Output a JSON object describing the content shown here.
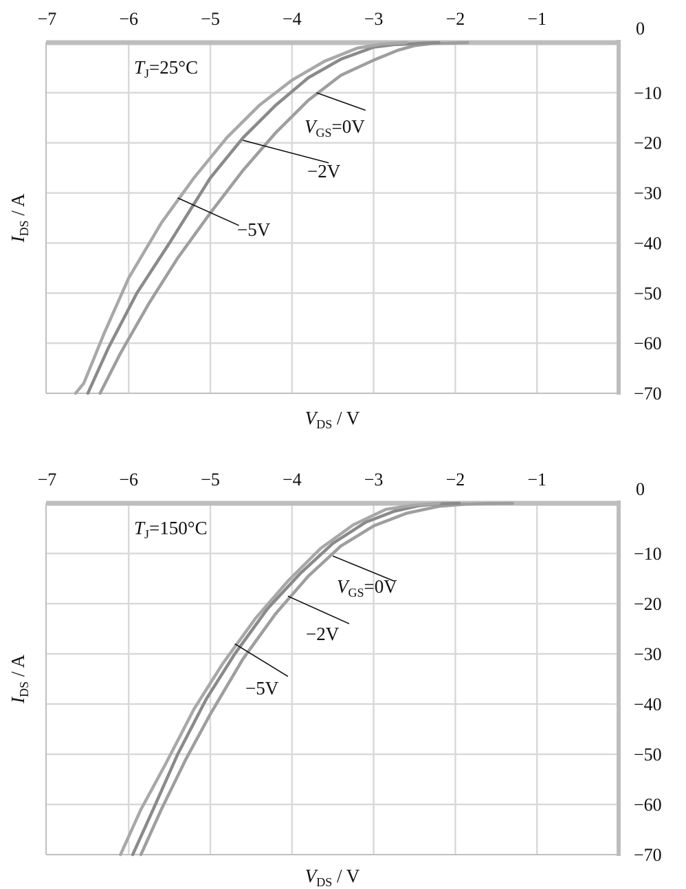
{
  "chart_data": [
    {
      "type": "line",
      "annotation": {
        "italic": "T",
        "sub": "J",
        "rest": "=25°C"
      },
      "xlabel": {
        "italic": "V",
        "sub": "DS",
        "rest": " / V"
      },
      "ylabel": {
        "italic": "I",
        "sub": "DS",
        "rest": " / A"
      },
      "xlim": [
        -7,
        0
      ],
      "ylim": [
        -70,
        0
      ],
      "x_ticks": [
        "−7",
        "−6",
        "−5",
        "−4",
        "−3",
        "−2",
        "−1"
      ],
      "y_ticks": [
        "0",
        "−10",
        "−20",
        "−30",
        "−40",
        "−50",
        "−60",
        "−70"
      ],
      "grid": true,
      "colors": {
        "gs0": "#9e9e9e",
        "gs2": "#8a8a8a",
        "gs5": "#a8a8a8"
      },
      "series": [
        {
          "label": {
            "italic": "V",
            "sub": "GS",
            "rest": "=0V"
          },
          "color_key": "gs0",
          "x": [
            -6.35,
            -6.1,
            -5.75,
            -5.4,
            -5.0,
            -4.6,
            -4.2,
            -3.8,
            -3.4,
            -3.0,
            -2.7,
            -2.5,
            -2.3,
            -2.05,
            -1.85
          ],
          "y": [
            -70,
            -62,
            -52,
            -43,
            -34,
            -25.5,
            -18,
            -11.5,
            -6.5,
            -3.5,
            -1.5,
            -0.6,
            -0.2,
            -0.1,
            0
          ]
        },
        {
          "label": {
            "rest": "−2V"
          },
          "color_key": "gs2",
          "x": [
            -6.5,
            -6.25,
            -5.9,
            -5.5,
            -5.0,
            -4.6,
            -4.2,
            -3.8,
            -3.4,
            -3.0,
            -2.75,
            -2.6,
            -2.4,
            -2.2
          ],
          "y": [
            -70,
            -61,
            -50,
            -40,
            -27,
            -19,
            -12.5,
            -7,
            -3.3,
            -0.9,
            -0.4,
            -0.3,
            -0.1,
            0
          ]
        },
        {
          "label": {
            "rest": "−5V"
          },
          "color_key": "gs5",
          "x": [
            -6.65,
            -6.55,
            -6.3,
            -6.0,
            -5.6,
            -5.2,
            -4.8,
            -4.4,
            -4.0,
            -3.6,
            -3.2,
            -2.9,
            -2.6
          ],
          "y": [
            -70,
            -68,
            -58,
            -47,
            -36,
            -27,
            -19,
            -12.5,
            -7.5,
            -3.7,
            -1.1,
            -0.3,
            0
          ]
        }
      ]
    },
    {
      "type": "line",
      "annotation": {
        "italic": "T",
        "sub": "J",
        "rest": "=150°C"
      },
      "xlabel": {
        "italic": "V",
        "sub": "DS",
        "rest": " / V"
      },
      "ylabel": {
        "italic": "I",
        "sub": "DS",
        "rest": " / A"
      },
      "xlim": [
        -7,
        0
      ],
      "ylim": [
        -70,
        0
      ],
      "x_ticks": [
        "−7",
        "−6",
        "−5",
        "−4",
        "−3",
        "−2",
        "−1"
      ],
      "y_ticks": [
        "0",
        "−10",
        "−20",
        "−30",
        "−40",
        "−50",
        "−60",
        "−70"
      ],
      "grid": true,
      "colors": {
        "gs0": "#9e9e9e",
        "gs2": "#8a8a8a",
        "gs5": "#a8a8a8"
      },
      "series": [
        {
          "label": {
            "italic": "V",
            "sub": "GS",
            "rest": "=0V"
          },
          "color_key": "gs0",
          "x": [
            -5.85,
            -5.6,
            -5.3,
            -5.0,
            -4.6,
            -4.2,
            -3.8,
            -3.4,
            -3.0,
            -2.6,
            -2.2,
            -1.9,
            -1.6,
            -1.3
          ],
          "y": [
            -70,
            -61,
            -51,
            -42,
            -31,
            -22,
            -14.5,
            -8.5,
            -4.5,
            -2,
            -0.6,
            -0.2,
            -0.05,
            0
          ]
        },
        {
          "label": {
            "rest": "−2V"
          },
          "color_key": "gs2",
          "x": [
            -5.95,
            -5.7,
            -5.4,
            -5.05,
            -4.7,
            -4.3,
            -3.9,
            -3.5,
            -3.1,
            -2.75,
            -2.45,
            -2.2,
            -1.95
          ],
          "y": [
            -70,
            -61,
            -50,
            -39,
            -30,
            -21,
            -14,
            -8,
            -3.8,
            -1.6,
            -0.5,
            -0.1,
            0
          ]
        },
        {
          "label": {
            "rest": "−5V"
          },
          "color_key": "gs5",
          "x": [
            -6.1,
            -5.85,
            -5.55,
            -5.2,
            -4.85,
            -4.45,
            -4.05,
            -3.65,
            -3.25,
            -2.85,
            -2.6,
            -2.45,
            -2.2
          ],
          "y": [
            -70,
            -61,
            -52,
            -41,
            -32,
            -23,
            -15.5,
            -9,
            -4.3,
            -1.2,
            -0.6,
            -0.3,
            0
          ]
        }
      ]
    }
  ]
}
